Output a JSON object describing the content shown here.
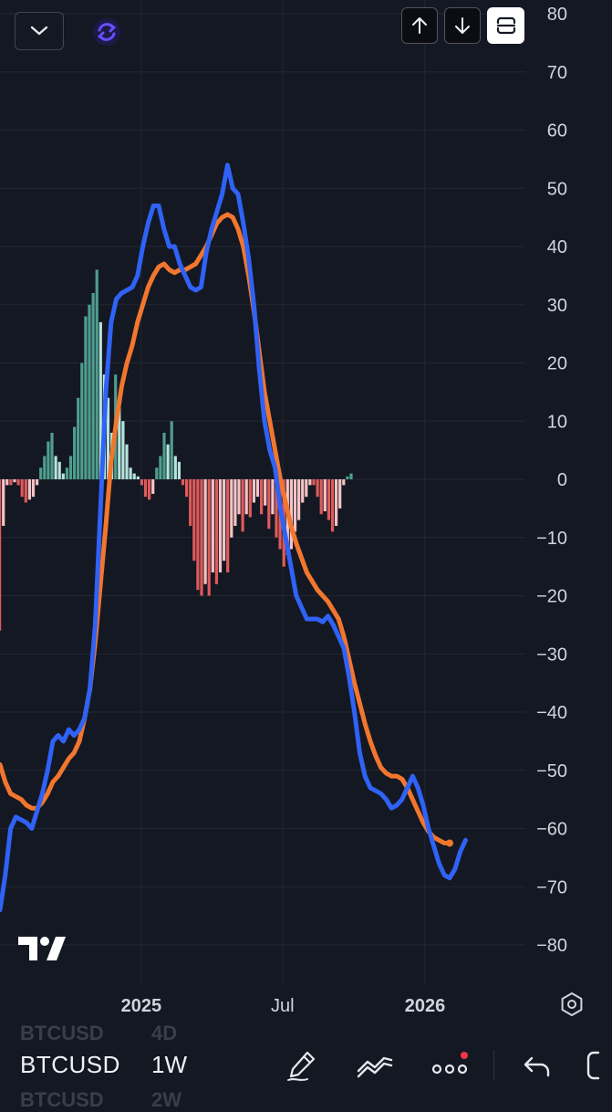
{
  "toolbar": {
    "collapse_icon": "chevron-down-icon",
    "sync_icon": "sync-icon",
    "scroll_up_icon": "arrow-up-icon",
    "scroll_down_icon": "arrow-down-icon",
    "fit_icon": "fit-screen-icon"
  },
  "bottom_bar": {
    "symbol": "BTCUSD",
    "interval": "1W",
    "ghost_symbol_above": "BTCUSD",
    "ghost_interval_above": "4D",
    "ghost_symbol_below": "BTCUSD",
    "ghost_interval_below": "2W",
    "icons": [
      "draw-icon",
      "indicators-icon",
      "more-icon",
      "undo-icon"
    ]
  },
  "colors": {
    "background": "#141823",
    "grid": "#232733",
    "macd_line": "#2f62f5",
    "signal_line": "#f2762e",
    "hist_pos_strong": "#4e9e8e",
    "hist_pos_weak": "#b6e4dc",
    "hist_neg_strong": "#e05a5a",
    "hist_neg_weak": "#f5c3c5"
  },
  "chart_data": {
    "type": "line",
    "title": "",
    "ylim": [
      -85,
      82
    ],
    "y_ticks": [
      80,
      70,
      60,
      50,
      40,
      30,
      20,
      10,
      0,
      -10,
      -20,
      -30,
      -40,
      -50,
      -60,
      -70,
      -80
    ],
    "y_tick_labels": [
      "80",
      "70",
      "60",
      "50",
      "40",
      "30",
      "20",
      "10",
      "0",
      "−10",
      "−20",
      "−30",
      "−40",
      "−50",
      "−60",
      "−70",
      "−80"
    ],
    "x_labels": [
      {
        "label": "2025",
        "x": 26.0,
        "bold": true
      },
      {
        "label": "Jul",
        "x": 52.0,
        "bold": false
      },
      {
        "label": "2026",
        "x": 78.2,
        "bold": true
      }
    ],
    "xlim": [
      0,
      116
    ],
    "grid": true,
    "series": [
      {
        "kind": "line",
        "points": [
          [
            0,
            -74
          ],
          [
            1,
            -68
          ],
          [
            2,
            -60
          ],
          [
            3,
            -58
          ],
          [
            4,
            -58.5
          ],
          [
            5,
            -59
          ],
          [
            6,
            -60
          ],
          [
            7,
            -57
          ],
          [
            8,
            -54
          ],
          [
            9,
            -50
          ],
          [
            10,
            -45
          ],
          [
            11,
            -44
          ],
          [
            12,
            -45
          ],
          [
            13,
            -43
          ],
          [
            14,
            -44
          ],
          [
            15,
            -43
          ],
          [
            16,
            -41
          ],
          [
            17,
            -36
          ],
          [
            18,
            -25
          ],
          [
            19,
            -5
          ],
          [
            20,
            15
          ],
          [
            21,
            27
          ],
          [
            22,
            31
          ],
          [
            23,
            32
          ],
          [
            24,
            32.5
          ],
          [
            25,
            33
          ],
          [
            26,
            35
          ],
          [
            27,
            40
          ],
          [
            28,
            44
          ],
          [
            29,
            47
          ],
          [
            30,
            47
          ],
          [
            31,
            43
          ],
          [
            32,
            40
          ],
          [
            33,
            40
          ],
          [
            34,
            37
          ],
          [
            35,
            35
          ],
          [
            36,
            33
          ],
          [
            37,
            32.5
          ],
          [
            38,
            33
          ],
          [
            39,
            39
          ],
          [
            40,
            43
          ],
          [
            41,
            46
          ],
          [
            42,
            49
          ],
          [
            43,
            54
          ],
          [
            44,
            50
          ],
          [
            45,
            49
          ],
          [
            46,
            44
          ],
          [
            47,
            38
          ],
          [
            48,
            30
          ],
          [
            49,
            19
          ],
          [
            50,
            10
          ],
          [
            51,
            5
          ],
          [
            52,
            2
          ],
          [
            53,
            -5
          ],
          [
            54,
            -10
          ],
          [
            55,
            -15
          ],
          [
            56,
            -20
          ],
          [
            57,
            -22
          ],
          [
            58,
            -24
          ],
          [
            59,
            -24
          ],
          [
            60,
            -24
          ],
          [
            61,
            -24.5
          ],
          [
            62,
            -23.5
          ],
          [
            63,
            -25
          ],
          [
            64,
            -27
          ],
          [
            65,
            -29
          ],
          [
            66,
            -34
          ],
          [
            67,
            -40
          ],
          [
            68,
            -47
          ],
          [
            69,
            -51
          ],
          [
            70,
            -53
          ],
          [
            71,
            -53.5
          ],
          [
            72,
            -54
          ],
          [
            73,
            -55
          ],
          [
            74,
            -56.5
          ],
          [
            75,
            -56
          ],
          [
            76,
            -55
          ],
          [
            77,
            -53
          ],
          [
            78,
            -51
          ],
          [
            79,
            -53
          ],
          [
            80,
            -56
          ],
          [
            81,
            -60
          ],
          [
            82,
            -63
          ],
          [
            83,
            -66
          ],
          [
            84,
            -68
          ],
          [
            85,
            -68.5
          ],
          [
            86,
            -67
          ],
          [
            87,
            -64
          ],
          [
            88,
            -62
          ]
        ]
      },
      {
        "kind": "line",
        "points": [
          [
            0,
            -49
          ],
          [
            1,
            -52
          ],
          [
            2,
            -54
          ],
          [
            3,
            -54.5
          ],
          [
            4,
            -55
          ],
          [
            5,
            -56
          ],
          [
            6,
            -56.5
          ],
          [
            7,
            -56.5
          ],
          [
            8,
            -55.5
          ],
          [
            9,
            -54
          ],
          [
            10,
            -52
          ],
          [
            11,
            -51
          ],
          [
            12,
            -49.5
          ],
          [
            13,
            -48
          ],
          [
            14,
            -47
          ],
          [
            15,
            -45
          ],
          [
            16,
            -41
          ],
          [
            17,
            -36
          ],
          [
            18,
            -28
          ],
          [
            19,
            -18
          ],
          [
            20,
            -8
          ],
          [
            21,
            3
          ],
          [
            22,
            10
          ],
          [
            23,
            16
          ],
          [
            24,
            20
          ],
          [
            25,
            23
          ],
          [
            26,
            27
          ],
          [
            27,
            30
          ],
          [
            28,
            33
          ],
          [
            29,
            35
          ],
          [
            30,
            36.5
          ],
          [
            31,
            37
          ],
          [
            32,
            36
          ],
          [
            33,
            35.5
          ],
          [
            34,
            36
          ],
          [
            35,
            36
          ],
          [
            36,
            36.5
          ],
          [
            37,
            37
          ],
          [
            38,
            38.5
          ],
          [
            39,
            40
          ],
          [
            40,
            42
          ],
          [
            41,
            44
          ],
          [
            42,
            45
          ],
          [
            43,
            45.5
          ],
          [
            44,
            45
          ],
          [
            45,
            43
          ],
          [
            46,
            40
          ],
          [
            47,
            35
          ],
          [
            48,
            29
          ],
          [
            49,
            22
          ],
          [
            50,
            15
          ],
          [
            51,
            10
          ],
          [
            52,
            5
          ],
          [
            53,
            0
          ],
          [
            54,
            -4
          ],
          [
            55,
            -8
          ],
          [
            56,
            -11
          ],
          [
            57,
            -13.5
          ],
          [
            58,
            -16
          ],
          [
            59,
            -17.5
          ],
          [
            60,
            -19
          ],
          [
            61,
            -20
          ],
          [
            62,
            -21
          ],
          [
            63,
            -22.5
          ],
          [
            64,
            -24
          ],
          [
            65,
            -27
          ],
          [
            66,
            -31
          ],
          [
            67,
            -35
          ],
          [
            68,
            -38.5
          ],
          [
            69,
            -42
          ],
          [
            70,
            -45
          ],
          [
            71,
            -47.5
          ],
          [
            72,
            -49.5
          ],
          [
            73,
            -50.5
          ],
          [
            74,
            -51
          ],
          [
            75,
            -51
          ],
          [
            76,
            -51.5
          ],
          [
            77,
            -53
          ],
          [
            78,
            -55
          ],
          [
            79,
            -57
          ],
          [
            80,
            -59
          ],
          [
            81,
            -60.5
          ],
          [
            82,
            -61.5
          ],
          [
            83,
            -62
          ],
          [
            84,
            -62.5
          ],
          [
            85,
            -62.5
          ]
        ]
      },
      {
        "kind": "histogram",
        "values": [
          -26,
          -8,
          -1,
          -1,
          -0.5,
          -1,
          -3,
          -4,
          -3.5,
          -3,
          -1,
          2,
          4,
          6.5,
          8,
          4,
          3,
          1,
          2,
          4,
          9,
          14,
          20,
          28,
          30,
          32,
          36,
          27,
          18,
          14,
          8,
          18,
          14,
          10,
          6,
          2,
          1,
          0.5,
          -1,
          -3,
          -3.5,
          -2.5,
          2,
          4,
          8,
          6,
          10,
          4,
          3,
          -1,
          -3,
          -8,
          -14,
          -19,
          -20,
          -18,
          -20,
          -16,
          -18,
          -16,
          -14,
          -16,
          -10,
          -8,
          -6,
          -9,
          -6,
          -6.5,
          -4,
          -3,
          -6,
          -4.5,
          -8.5,
          -6,
          -10,
          -12,
          -15,
          -13,
          -12,
          -9,
          -7,
          -4,
          -3,
          -1,
          -1,
          -3,
          -6,
          -5.5,
          -7,
          -9,
          -8,
          -5,
          -1,
          0.5,
          1
        ],
        "x_offset": -4
      }
    ]
  }
}
